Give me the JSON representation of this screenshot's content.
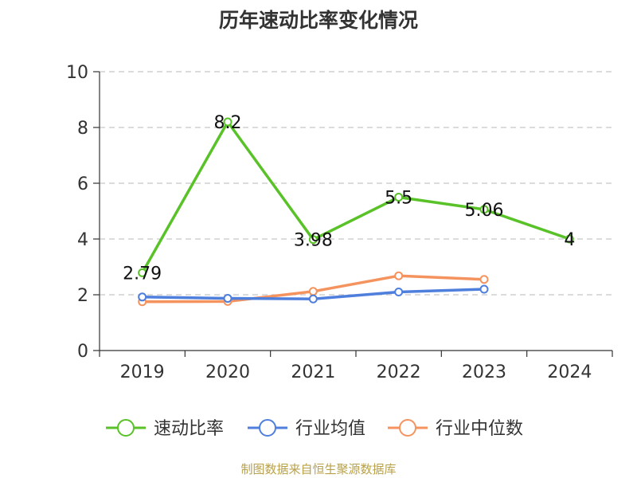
{
  "footer": "制图数据来自恒生聚源数据库",
  "chart_data": {
    "type": "line",
    "title": "历年速动比率变化情况",
    "categories": [
      "2019",
      "2020",
      "2021",
      "2022",
      "2023",
      "2024"
    ],
    "ylim": [
      0,
      10
    ],
    "yticks": [
      0,
      2,
      4,
      6,
      8,
      10
    ],
    "grid": true,
    "legend_position": "bottom",
    "series": [
      {
        "name": "速动比率",
        "color": "#5ac229",
        "values": [
          2.79,
          8.2,
          3.98,
          5.5,
          5.06,
          4
        ],
        "labels": [
          "2.79",
          "8.2",
          "3.98",
          "5.5",
          "5.06",
          "4"
        ]
      },
      {
        "name": "行业均值",
        "color": "#4f7fdd",
        "values": [
          1.92,
          1.87,
          1.85,
          2.1,
          2.2,
          null
        ]
      },
      {
        "name": "行业中位数",
        "color": "#f5935f",
        "values": [
          1.75,
          1.76,
          2.12,
          2.68,
          2.55,
          null
        ]
      }
    ]
  }
}
